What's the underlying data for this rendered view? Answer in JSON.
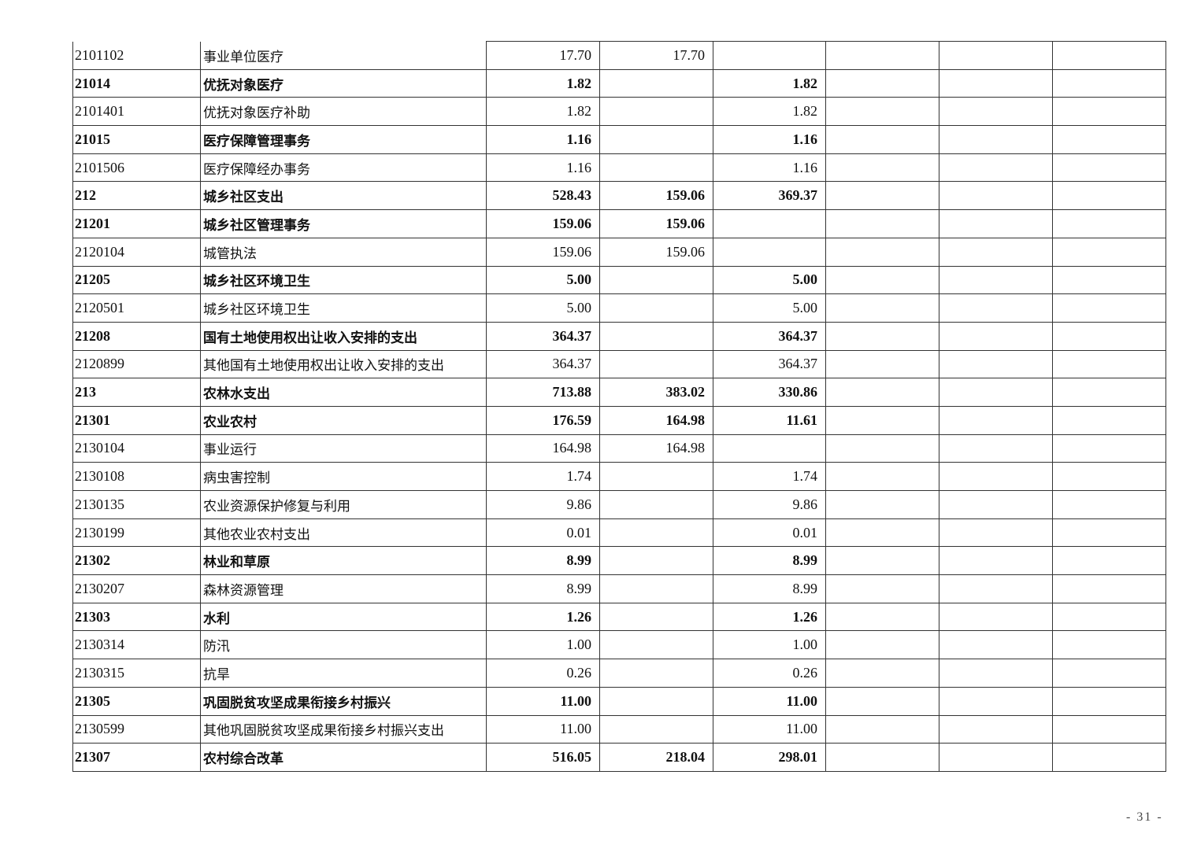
{
  "rows": [
    {
      "code": "2101102",
      "name": "事业单位医疗",
      "total": "17.70",
      "basic": "17.70",
      "project": "",
      "c6": "",
      "c7": "",
      "c8": "",
      "bold": false
    },
    {
      "code": "21014",
      "name": "优抚对象医疗",
      "total": "1.82",
      "basic": "",
      "project": "1.82",
      "c6": "",
      "c7": "",
      "c8": "",
      "bold": true
    },
    {
      "code": "2101401",
      "name": "优抚对象医疗补助",
      "total": "1.82",
      "basic": "",
      "project": "1.82",
      "c6": "",
      "c7": "",
      "c8": "",
      "bold": false
    },
    {
      "code": "21015",
      "name": "医疗保障管理事务",
      "total": "1.16",
      "basic": "",
      "project": "1.16",
      "c6": "",
      "c7": "",
      "c8": "",
      "bold": true
    },
    {
      "code": "2101506",
      "name": "医疗保障经办事务",
      "total": "1.16",
      "basic": "",
      "project": "1.16",
      "c6": "",
      "c7": "",
      "c8": "",
      "bold": false
    },
    {
      "code": "212",
      "name": "城乡社区支出",
      "total": "528.43",
      "basic": "159.06",
      "project": "369.37",
      "c6": "",
      "c7": "",
      "c8": "",
      "bold": true
    },
    {
      "code": "21201",
      "name": "城乡社区管理事务",
      "total": "159.06",
      "basic": "159.06",
      "project": "",
      "c6": "",
      "c7": "",
      "c8": "",
      "bold": true
    },
    {
      "code": "2120104",
      "name": "城管执法",
      "total": "159.06",
      "basic": "159.06",
      "project": "",
      "c6": "",
      "c7": "",
      "c8": "",
      "bold": false
    },
    {
      "code": "21205",
      "name": "城乡社区环境卫生",
      "total": "5.00",
      "basic": "",
      "project": "5.00",
      "c6": "",
      "c7": "",
      "c8": "",
      "bold": true
    },
    {
      "code": "2120501",
      "name": "城乡社区环境卫生",
      "total": "5.00",
      "basic": "",
      "project": "5.00",
      "c6": "",
      "c7": "",
      "c8": "",
      "bold": false
    },
    {
      "code": "21208",
      "name": "国有土地使用权出让收入安排的支出",
      "total": "364.37",
      "basic": "",
      "project": "364.37",
      "c6": "",
      "c7": "",
      "c8": "",
      "bold": true
    },
    {
      "code": "2120899",
      "name": "其他国有土地使用权出让收入安排的支出",
      "total": "364.37",
      "basic": "",
      "project": "364.37",
      "c6": "",
      "c7": "",
      "c8": "",
      "bold": false
    },
    {
      "code": "213",
      "name": "农林水支出",
      "total": "713.88",
      "basic": "383.02",
      "project": "330.86",
      "c6": "",
      "c7": "",
      "c8": "",
      "bold": true
    },
    {
      "code": "21301",
      "name": "农业农村",
      "total": "176.59",
      "basic": "164.98",
      "project": "11.61",
      "c6": "",
      "c7": "",
      "c8": "",
      "bold": true
    },
    {
      "code": "2130104",
      "name": "事业运行",
      "total": "164.98",
      "basic": "164.98",
      "project": "",
      "c6": "",
      "c7": "",
      "c8": "",
      "bold": false
    },
    {
      "code": "2130108",
      "name": "病虫害控制",
      "total": "1.74",
      "basic": "",
      "project": "1.74",
      "c6": "",
      "c7": "",
      "c8": "",
      "bold": false
    },
    {
      "code": "2130135",
      "name": "农业资源保护修复与利用",
      "total": "9.86",
      "basic": "",
      "project": "9.86",
      "c6": "",
      "c7": "",
      "c8": "",
      "bold": false
    },
    {
      "code": "2130199",
      "name": "其他农业农村支出",
      "total": "0.01",
      "basic": "",
      "project": "0.01",
      "c6": "",
      "c7": "",
      "c8": "",
      "bold": false
    },
    {
      "code": "21302",
      "name": "林业和草原",
      "total": "8.99",
      "basic": "",
      "project": "8.99",
      "c6": "",
      "c7": "",
      "c8": "",
      "bold": true
    },
    {
      "code": "2130207",
      "name": "森林资源管理",
      "total": "8.99",
      "basic": "",
      "project": "8.99",
      "c6": "",
      "c7": "",
      "c8": "",
      "bold": false
    },
    {
      "code": "21303",
      "name": "水利",
      "total": "1.26",
      "basic": "",
      "project": "1.26",
      "c6": "",
      "c7": "",
      "c8": "",
      "bold": true
    },
    {
      "code": "2130314",
      "name": "防汛",
      "total": "1.00",
      "basic": "",
      "project": "1.00",
      "c6": "",
      "c7": "",
      "c8": "",
      "bold": false
    },
    {
      "code": "2130315",
      "name": "抗旱",
      "total": "0.26",
      "basic": "",
      "project": "0.26",
      "c6": "",
      "c7": "",
      "c8": "",
      "bold": false
    },
    {
      "code": "21305",
      "name": "巩固脱贫攻坚成果衔接乡村振兴",
      "total": "11.00",
      "basic": "",
      "project": "11.00",
      "c6": "",
      "c7": "",
      "c8": "",
      "bold": true
    },
    {
      "code": "2130599",
      "name": "其他巩固脱贫攻坚成果衔接乡村振兴支出",
      "total": "11.00",
      "basic": "",
      "project": "11.00",
      "c6": "",
      "c7": "",
      "c8": "",
      "bold": false
    },
    {
      "code": "21307",
      "name": "农村综合改革",
      "total": "516.05",
      "basic": "218.04",
      "project": "298.01",
      "c6": "",
      "c7": "",
      "c8": "",
      "bold": true
    }
  ],
  "page_number": "- 31 -"
}
